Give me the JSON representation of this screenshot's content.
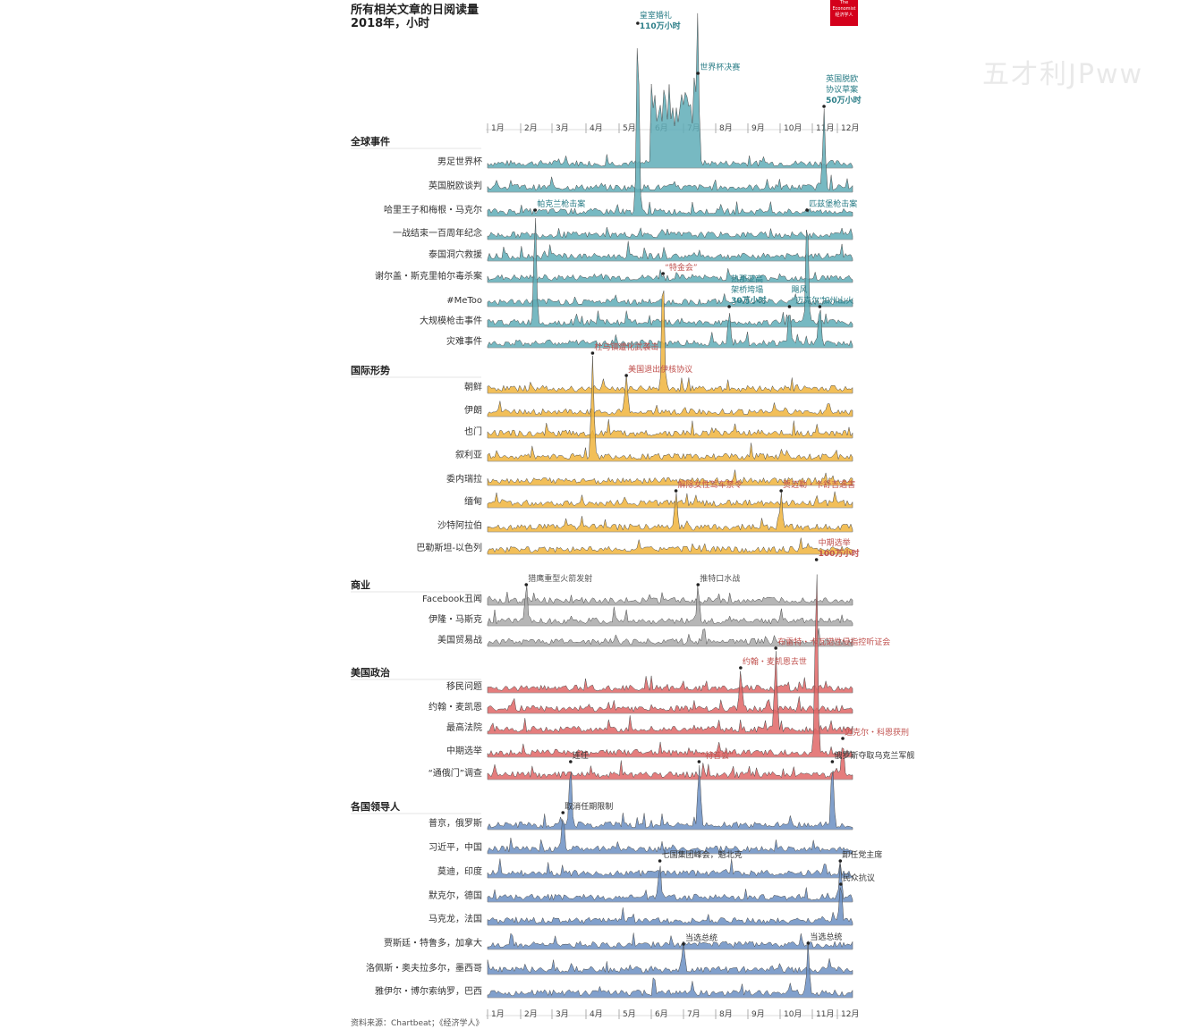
{
  "header": {
    "title": "所有相关文章的日阅读量",
    "subtitle": "2018年，小时",
    "logo_text": "The Economist 经济学人"
  },
  "watermark": "五才利JPww",
  "source": "资料来源：Chartbeat；《经济学人》",
  "chart_data": {
    "type": "area",
    "months": [
      "1月",
      "2月",
      "3月",
      "4月",
      "5月",
      "6月",
      "7月",
      "8月",
      "9月",
      "10月",
      "11月",
      "12月"
    ],
    "unit": "小时",
    "colors": {
      "global": "#5fadb7",
      "intl": "#f0b43c",
      "business": "#a9a9a9",
      "politics": "#e06666",
      "leaders": "#6b8fc3"
    },
    "sections": [
      {
        "label": "全球事件",
        "color_key": "global",
        "series": [
          "男足世界杯",
          "英国脱欧谈判",
          "哈里王子和梅根・马克尔",
          "一战结束一百周年纪念",
          "泰国洞穴救援",
          "谢尔盖・斯克里帕尔毒杀案",
          "#MeToo",
          "大规模枪击事件",
          "灾难事件"
        ]
      },
      {
        "label": "国际形势",
        "color_key": "intl",
        "series": [
          "朝鲜",
          "伊朗",
          "也门",
          "叙利亚",
          "委内瑞拉",
          "缅甸",
          "沙特阿拉伯",
          "巴勒斯坦-以色列"
        ]
      },
      {
        "label": "商业",
        "color_key": "business",
        "series": [
          "Facebook丑闻",
          "伊隆・马斯克",
          "美国贸易战"
        ]
      },
      {
        "label": "美国政治",
        "color_key": "politics",
        "series": [
          "移民问题",
          "约翰・麦凯恩",
          "最高法院",
          "中期选举",
          "“通俄门”调查"
        ]
      },
      {
        "label": "各国领导人",
        "color_key": "leaders",
        "series": [
          "普京，俄罗斯",
          "习近平，中国",
          "莫迪，印度",
          "默克尔，德国",
          "马克龙，法国",
          "贾斯廷・特鲁多，加拿大",
          "洛佩斯・奥夫拉多尔，墨西哥",
          "雅伊尔・博尔索纳罗，巴西"
        ]
      }
    ],
    "annotations": [
      {
        "text": "皇室婚礼",
        "bold": "110万小时",
        "series": "哈里王子和梅根・马克尔",
        "date": "5月19日",
        "color": "#2a7d87"
      },
      {
        "text": "世界杯决赛",
        "series": "男足世界杯",
        "date": "7月15日",
        "color": "#2a7d87"
      },
      {
        "text": "英国脱欧",
        "text2": "协议草案",
        "bold": "50万小时",
        "series": "英国脱欧谈判",
        "date": "11月15日",
        "color": "#2a7d87"
      },
      {
        "text": "帕克兰枪击案",
        "series": "大规模枪击事件",
        "date": "2月14日",
        "color": "#2a7d87"
      },
      {
        "text": "“特金会”",
        "series": "朝鲜",
        "date": "6月12日",
        "color": "#c0504d"
      },
      {
        "text": "匹兹堡枪击案",
        "series": "大规模枪击事件",
        "date": "10月27日",
        "color": "#2a7d87"
      },
      {
        "text": "杜马镇遭化武袭击",
        "series": "叙利亚",
        "date": "4月7日",
        "color": "#c0504d"
      },
      {
        "text": "美国退出伊核协议",
        "series": "伊朗",
        "date": "5月8日",
        "color": "#c0504d"
      },
      {
        "text": "热那亚高",
        "text2": "架桥垮塌",
        "bold": "30万小时",
        "series": "灾难事件",
        "date": "8月14日",
        "color": "#2a7d87"
      },
      {
        "text": "飓风",
        "text2": "“迈克尔”",
        "series": "灾难事件",
        "date": "10月10日",
        "color": "#2a7d87"
      },
      {
        "text": "加州山火",
        "series": "灾难事件",
        "date": "11月10日",
        "color": "#2a7d87"
      },
      {
        "text": "解除女性驾车禁令",
        "series": "沙特阿拉伯",
        "date": "6月24日",
        "color": "#c0504d"
      },
      {
        "text": "贾迈勒・卡舒吉遇害",
        "series": "沙特阿拉伯",
        "date": "10月2日",
        "color": "#c0504d"
      },
      {
        "text": "猎鹰重型火箭发射",
        "series": "伊隆・马斯克",
        "date": "2月6日",
        "color": "#555555"
      },
      {
        "text": "推特口水战",
        "series": "伊隆・马斯克",
        "date": "7月15日",
        "color": "#555555"
      },
      {
        "text": "中期选举",
        "bold": "100万小时",
        "series": "中期选举",
        "date": "11月6日",
        "color": "#c0504d"
      },
      {
        "text": "布雷特・卡瓦诺性侵指控听证会",
        "series": "最高法院",
        "date": "9月27日",
        "color": "#c0504d"
      },
      {
        "text": "约翰・麦凯恩去世",
        "series": "约翰・麦凯恩",
        "date": "8月25日",
        "color": "#c0504d"
      },
      {
        "text": "“特普会”",
        "series": "普京，俄罗斯",
        "date": "7月16日",
        "color": "#c0504d"
      },
      {
        "text": "迈克尔・科恩获刑",
        "series": "“通俄门”调查",
        "date": "12月12日",
        "color": "#c0504d"
      },
      {
        "text": "连任",
        "series": "普京，俄罗斯",
        "date": "3月18日",
        "color": "#333333"
      },
      {
        "text": "俄罗斯夺取乌克兰军舰",
        "series": "普京，俄罗斯",
        "date": "11月25日",
        "color": "#333333"
      },
      {
        "text": "取消任期限制",
        "series": "习近平，中国",
        "date": "3月11日",
        "color": "#333333"
      },
      {
        "text": "七国集团峰会，魁北克",
        "series": "默克尔，德国",
        "date": "6月9日",
        "color": "#333333"
      },
      {
        "text": "卸任党主席",
        "series": "默克尔，德国",
        "date": "12月7日",
        "color": "#333333"
      },
      {
        "text": "当选总统",
        "series": "洛佩斯・奥夫拉多尔，墨西哥",
        "date": "7月1日",
        "color": "#333333"
      },
      {
        "text": "民众抗议",
        "series": "马克龙，法国",
        "date": "12月8日",
        "color": "#333333"
      },
      {
        "text": "当选总统",
        "series": "雅伊尔・博尔索纳罗，巴西",
        "date": "10月28日",
        "color": "#333333"
      }
    ]
  }
}
